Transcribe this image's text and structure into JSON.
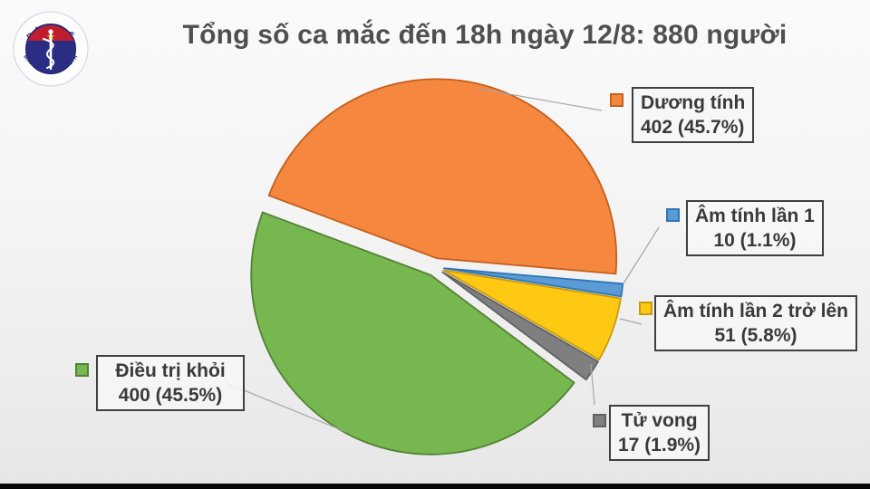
{
  "title": "Tổng số ca mắc đến 18h ngày 12/8: 880 người",
  "logo": {
    "top_text": "BỘ Y TẾ",
    "bottom_text": "MINISTRY OF HEALTH"
  },
  "chart_data": {
    "type": "pie",
    "title": "Tổng số ca mắc đến 18h ngày 12/8: 880 người",
    "total": 880,
    "unit": "người",
    "start_angle_deg": 159.5,
    "direction": "clockwise",
    "exploded": true,
    "legend_position": "callout-labels",
    "slices": [
      {
        "label": "Dương tính",
        "value": 402,
        "percent": 45.7,
        "value_text": "402 (45.7%)",
        "color": "#F5873E",
        "border": "#C55F1D"
      },
      {
        "label": "Âm tính lần 1",
        "value": 10,
        "percent": 1.1,
        "value_text": "10 (1.1%)",
        "color": "#5B9BD5",
        "border": "#2E75B6"
      },
      {
        "label": "Âm tính lần 2 trở lên",
        "value": 51,
        "percent": 5.8,
        "value_text": "51 (5.8%)",
        "color": "#FFC913",
        "border": "#C79A10"
      },
      {
        "label": "Tử vong",
        "value": 17,
        "percent": 1.9,
        "value_text": "17 (1.9%)",
        "color": "#7F7F7F",
        "border": "#616161"
      },
      {
        "label": "Điều trị khỏi",
        "value": 400,
        "percent": 45.5,
        "value_text": "400 (45.5%)",
        "color": "#76B750",
        "border": "#538135"
      }
    ],
    "colors": {
      "title_text": "#4F4F4F",
      "label_text": "#3A3A3A",
      "label_border": "#3F3F3F",
      "leader_line": "#A6A6A6",
      "logo_navy": "#2B2D84",
      "logo_red": "#BE1E2D",
      "logo_star": "#FFD100"
    }
  }
}
